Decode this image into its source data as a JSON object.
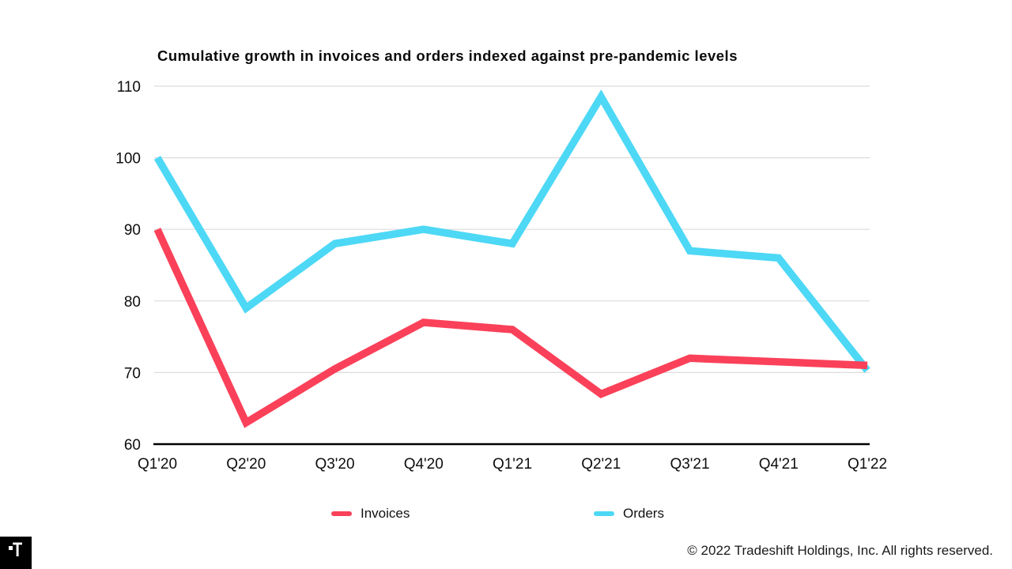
{
  "chart_data": {
    "type": "line",
    "title": "Cumulative growth in invoices and orders indexed against pre-pandemic levels",
    "categories": [
      "Q1'20",
      "Q2'20",
      "Q3'20",
      "Q4'20",
      "Q1'21",
      "Q2'21",
      "Q3'21",
      "Q4'21",
      "Q1'22"
    ],
    "series": [
      {
        "name": "Invoices",
        "color": "#FA4159",
        "values": [
          90,
          63,
          70.5,
          77,
          76,
          67,
          72,
          71.5,
          71
        ]
      },
      {
        "name": "Orders",
        "color": "#4DD8F5",
        "values": [
          100,
          79,
          88,
          90,
          88,
          108.5,
          87,
          86,
          70.3
        ]
      }
    ],
    "xlabel": "",
    "ylabel": "",
    "ylim": [
      60,
      110
    ],
    "yticks": [
      60,
      70,
      80,
      90,
      100,
      110
    ],
    "grid": true,
    "gridline_color": "#dcdcdc",
    "axis_color": "#000000",
    "legend_position": "bottom"
  },
  "legend": {
    "items": [
      {
        "label": "Invoices",
        "color": "#FA4159"
      },
      {
        "label": "Orders",
        "color": "#4DD8F5"
      }
    ]
  },
  "footer": {
    "copyright": "© 2022 Tradeshift Holdings, Inc. All rights reserved."
  },
  "logo": {
    "letter": "T",
    "background": "#000000"
  }
}
